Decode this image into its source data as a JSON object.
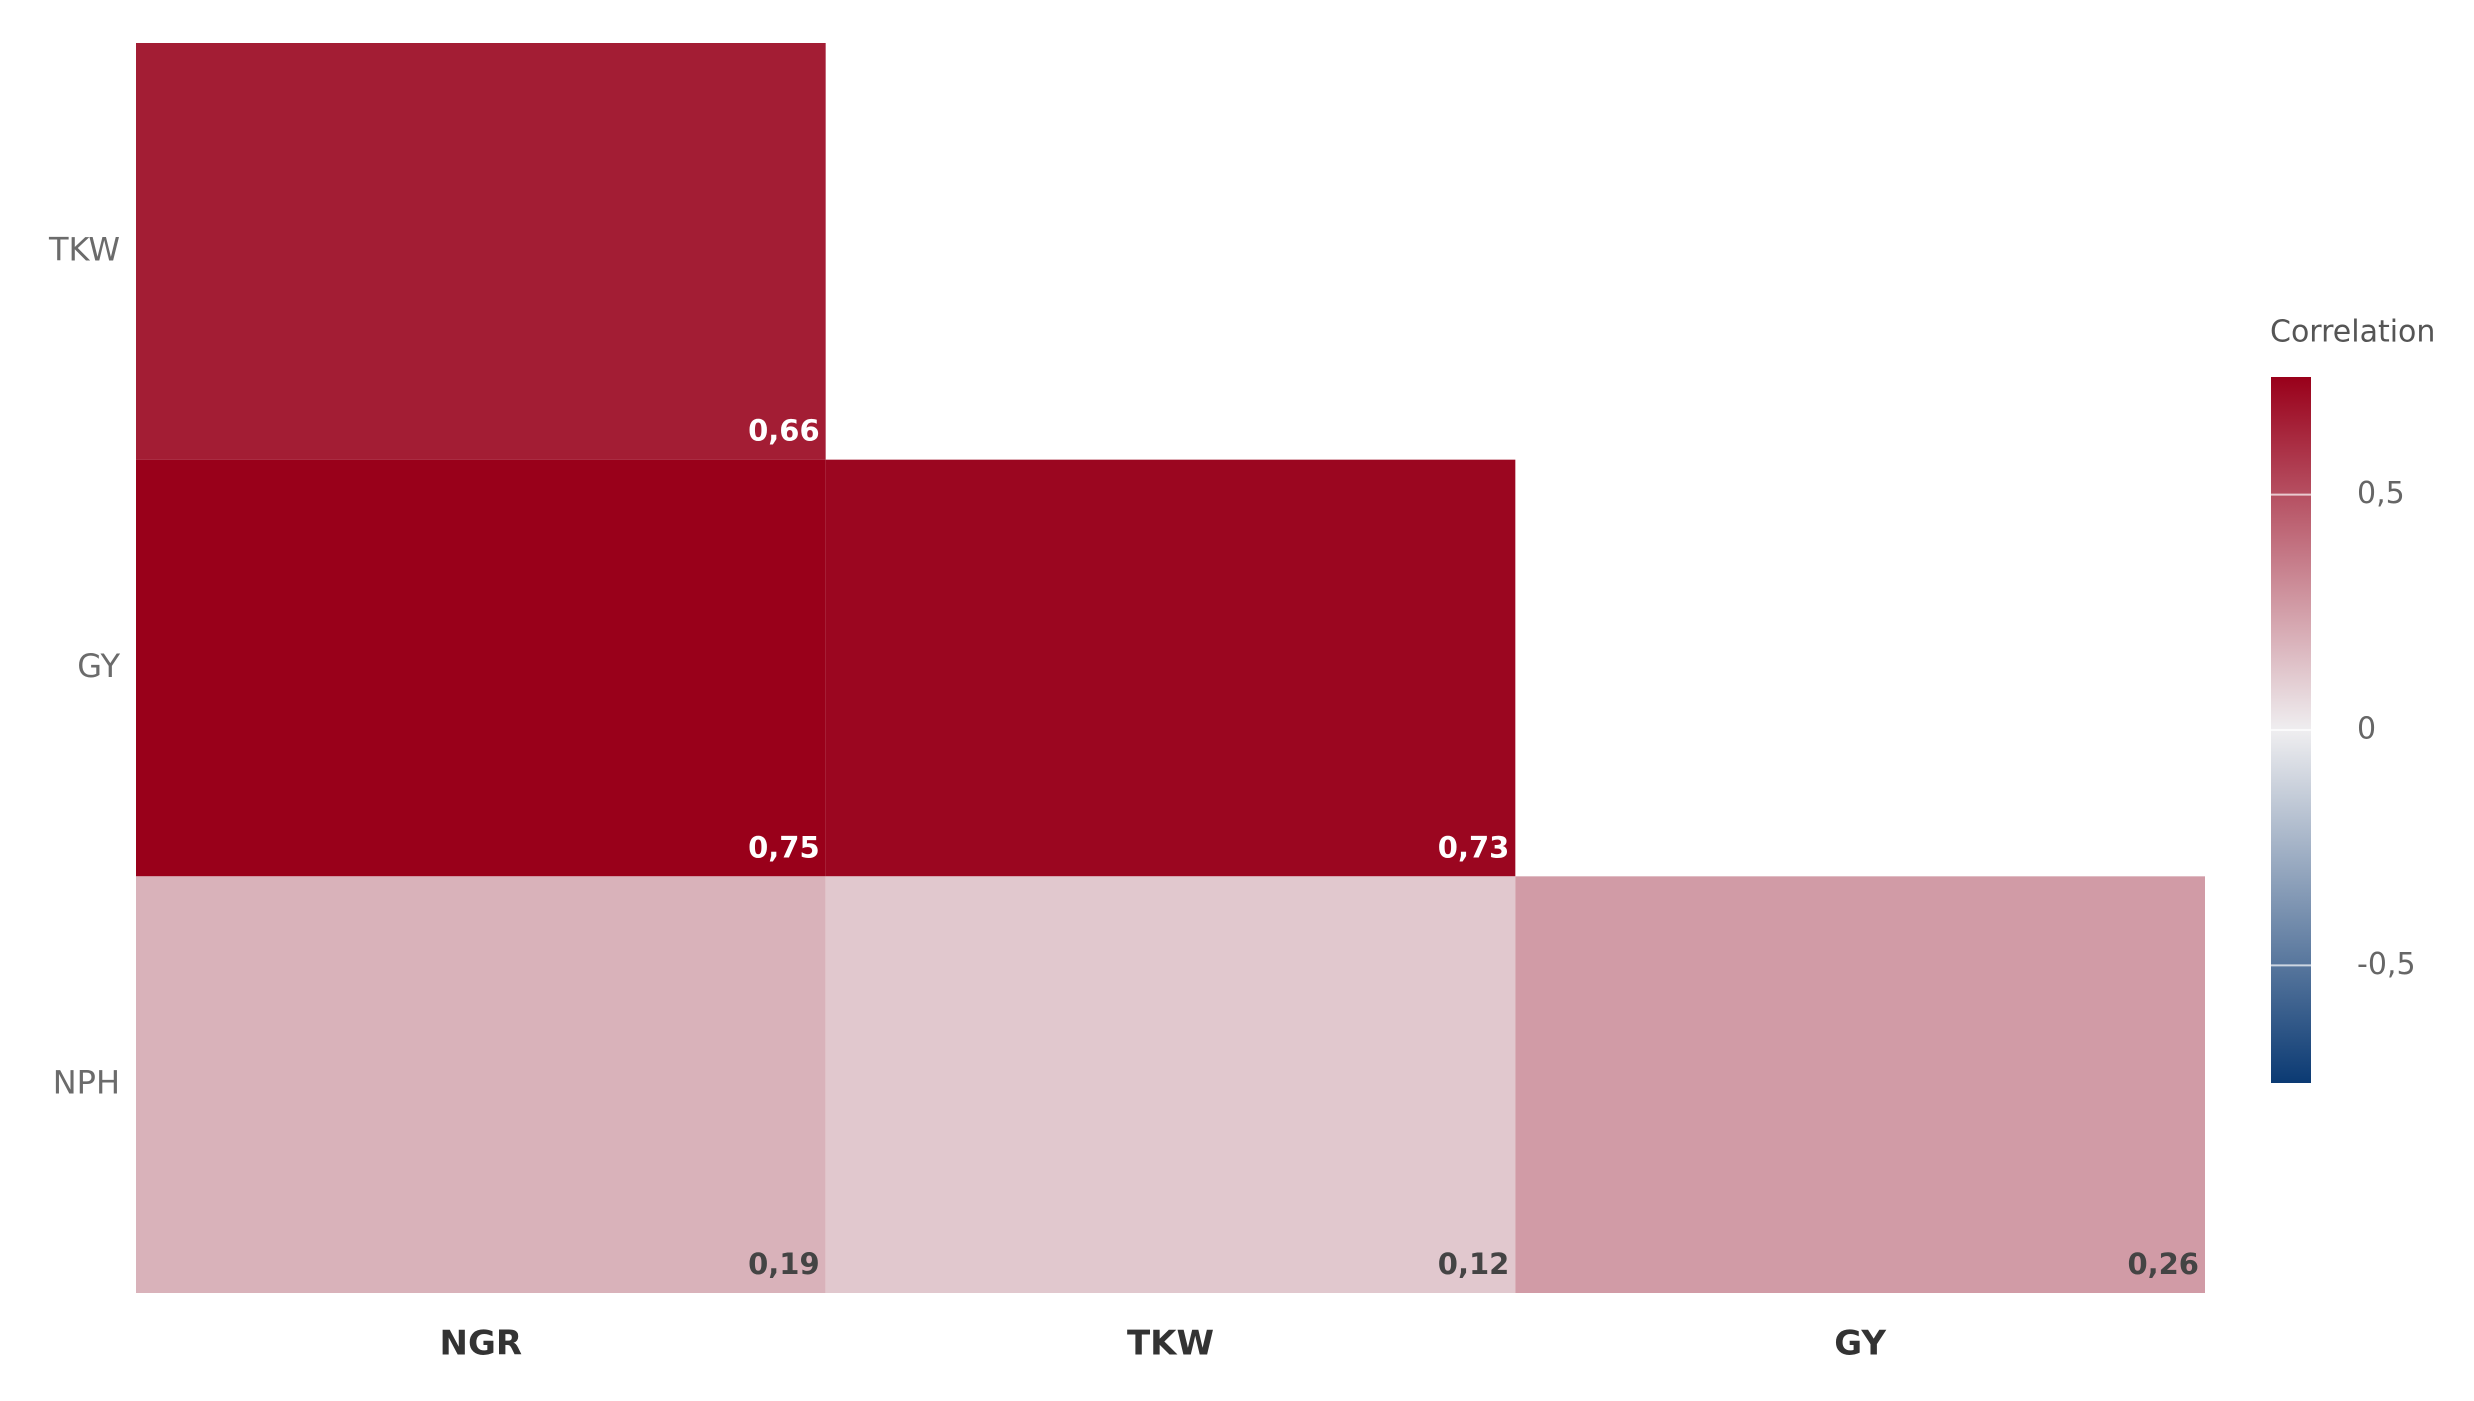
{
  "chart_data": {
    "type": "heatmap",
    "x_categories": [
      "NGR",
      "TKW",
      "GY"
    ],
    "y_categories": [
      "TKW",
      "GY",
      "NPH"
    ],
    "z": [
      [
        0.66,
        null,
        null
      ],
      [
        0.75,
        0.73,
        null
      ],
      [
        0.19,
        0.12,
        0.26
      ]
    ],
    "value_labels": [
      [
        "0,66",
        null,
        null
      ],
      [
        "0,75",
        "0,73",
        null
      ],
      [
        "0,19",
        "0,12",
        "0,26"
      ]
    ],
    "colorbar_title": "Correlation",
    "zlim": [
      -0.75,
      0.75
    ],
    "zticks": [
      {
        "value": 0.5,
        "label": "0,5"
      },
      0,
      {
        "value": -0.5,
        "label": "-0,5"
      }
    ],
    "colorscale": [
      [
        -0.75,
        "#0b3a73"
      ],
      [
        0,
        "#efeef0"
      ],
      [
        0.75,
        "#99001a"
      ]
    ]
  }
}
